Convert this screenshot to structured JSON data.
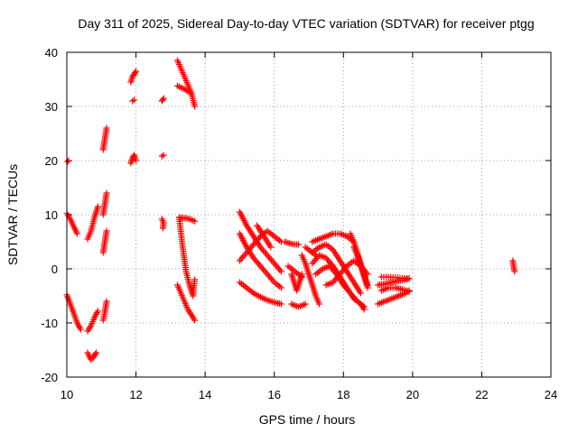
{
  "chart_data": {
    "type": "scatter",
    "title": "Day 311 of 2025, Sidereal Day-to-day VTEC variation (SDTVAR) for receiver ptgg",
    "xlabel": "GPS time / hours",
    "ylabel": "SDTVAR / TECUs",
    "xlim": [
      10,
      24
    ],
    "ylim": [
      -20,
      40
    ],
    "xticks": [
      10,
      12,
      14,
      16,
      18,
      20,
      22,
      24
    ],
    "yticks": [
      -20,
      -10,
      0,
      10,
      20,
      30,
      40
    ],
    "xtick_labels": [
      "10",
      "12",
      "14",
      "16",
      "18",
      "20",
      "22",
      "24"
    ],
    "ytick_labels": [
      "-20",
      "-10",
      "0",
      "10",
      "20",
      "30",
      "40"
    ],
    "grid": true,
    "marker": "plus",
    "color": "#ff0000",
    "segments": [
      {
        "x": [
          10.0,
          10.1,
          10.2,
          10.3
        ],
        "y": [
          10.2,
          9.2,
          7.8,
          6.5
        ]
      },
      {
        "x": [
          10.0,
          10.1,
          10.2,
          10.3,
          10.4
        ],
        "y": [
          -4.8,
          -6.5,
          -8.2,
          -10.0,
          -11.2
        ]
      },
      {
        "x": [
          10.02,
          10.05
        ],
        "y": [
          19.8,
          20.0
        ]
      },
      {
        "x": [
          10.6,
          10.65,
          10.7,
          10.75,
          10.8,
          10.85
        ],
        "y": [
          -15.5,
          -16.2,
          -16.8,
          -16.5,
          -16.0,
          -15.5
        ]
      },
      {
        "x": [
          10.6,
          10.7,
          10.8,
          10.9
        ],
        "y": [
          5.5,
          7.0,
          9.5,
          11.5
        ]
      },
      {
        "x": [
          10.6,
          10.7,
          10.8,
          10.9
        ],
        "y": [
          -11.5,
          -10.5,
          -9.0,
          -7.8
        ]
      },
      {
        "x": [
          11.05,
          11.1,
          11.15
        ],
        "y": [
          -9.5,
          -8.0,
          -6.0
        ]
      },
      {
        "x": [
          11.05,
          11.1,
          11.15
        ],
        "y": [
          3.0,
          5.0,
          7.0
        ]
      },
      {
        "x": [
          11.05,
          11.1,
          11.15
        ],
        "y": [
          10.0,
          12.0,
          14.0
        ]
      },
      {
        "x": [
          11.05,
          11.1,
          11.15
        ],
        "y": [
          22.0,
          24.0,
          26.0
        ]
      },
      {
        "x": [
          11.85,
          11.9,
          11.95,
          12.0
        ],
        "y": [
          34.5,
          35.5,
          36.0,
          36.5
        ]
      },
      {
        "x": [
          11.9,
          11.95
        ],
        "y": [
          31.0,
          31.2
        ]
      },
      {
        "x": [
          11.85,
          11.9,
          11.95,
          12.0
        ],
        "y": [
          19.5,
          20.5,
          21.0,
          20.0
        ]
      },
      {
        "x": [
          12.75,
          12.8
        ],
        "y": [
          31.0,
          31.5
        ]
      },
      {
        "x": [
          12.75,
          12.8
        ],
        "y": [
          20.8,
          21.0
        ]
      },
      {
        "x": [
          12.75,
          12.8,
          12.78
        ],
        "y": [
          9.2,
          8.5,
          7.5
        ]
      },
      {
        "x": [
          13.2,
          13.3,
          13.4,
          13.5,
          13.6,
          13.7
        ],
        "y": [
          38.5,
          37.0,
          35.5,
          34.0,
          32.5,
          30.0
        ]
      },
      {
        "x": [
          13.2,
          13.3,
          13.4,
          13.5,
          13.6
        ],
        "y": [
          33.8,
          33.5,
          33.2,
          32.8,
          32.5
        ]
      },
      {
        "x": [
          13.25,
          13.35,
          13.45,
          13.55,
          13.65,
          13.7
        ],
        "y": [
          9.5,
          4.0,
          -0.5,
          -3.0,
          -5.0,
          -2.0
        ]
      },
      {
        "x": [
          13.25,
          13.4,
          13.55,
          13.7
        ],
        "y": [
          9.5,
          9.4,
          9.2,
          8.8
        ]
      },
      {
        "x": [
          13.2,
          13.3,
          13.4,
          13.5,
          13.6,
          13.7
        ],
        "y": [
          -3.0,
          -4.5,
          -6.0,
          -7.5,
          -8.5,
          -9.5
        ]
      },
      {
        "x": [
          15.0,
          15.2,
          15.4,
          15.6,
          15.8,
          16.0,
          16.2
        ],
        "y": [
          10.5,
          8.0,
          6.0,
          4.0,
          2.5,
          1.0,
          -0.5
        ]
      },
      {
        "x": [
          15.0,
          15.2,
          15.4,
          15.6,
          15.8,
          16.0,
          16.2
        ],
        "y": [
          6.5,
          4.0,
          2.0,
          0.5,
          -1.0,
          -2.5,
          -3.5
        ]
      },
      {
        "x": [
          15.0,
          15.2,
          15.4,
          15.6,
          15.8,
          16.0,
          16.2
        ],
        "y": [
          1.5,
          3.0,
          4.5,
          6.0,
          7.0,
          6.0,
          5.0
        ]
      },
      {
        "x": [
          15.0,
          15.2,
          15.4,
          15.6,
          15.8,
          16.0,
          16.2
        ],
        "y": [
          -2.5,
          -3.5,
          -4.5,
          -5.2,
          -5.8,
          -6.2,
          -6.5
        ]
      },
      {
        "x": [
          15.5,
          15.6,
          15.7,
          15.8,
          15.9
        ],
        "y": [
          8.0,
          7.0,
          6.0,
          5.0,
          4.0
        ]
      },
      {
        "x": [
          16.3,
          16.4,
          16.5,
          16.6,
          16.7
        ],
        "y": [
          5.0,
          4.8,
          4.6,
          4.5,
          4.5
        ]
      },
      {
        "x": [
          16.4,
          16.5,
          16.6,
          16.7,
          16.8
        ],
        "y": [
          0.5,
          0.0,
          -0.5,
          -1.0,
          -1.5
        ]
      },
      {
        "x": [
          16.5,
          16.55,
          16.6,
          16.65,
          16.7,
          16.75,
          16.8
        ],
        "y": [
          -1.0,
          -2.0,
          -3.0,
          -4.0,
          -3.0,
          -2.0,
          -1.0
        ]
      },
      {
        "x": [
          16.5,
          16.6,
          16.7,
          16.8,
          16.9
        ],
        "y": [
          -6.5,
          -6.8,
          -7.0,
          -6.8,
          -6.5
        ]
      },
      {
        "x": [
          16.8,
          16.9,
          17.0,
          17.1,
          17.2,
          17.3
        ],
        "y": [
          2.5,
          1.0,
          -1.0,
          -3.0,
          -5.0,
          -6.5
        ]
      },
      {
        "x": [
          16.9,
          17.0,
          17.1,
          17.2
        ],
        "y": [
          4.0,
          3.5,
          3.0,
          2.5
        ]
      },
      {
        "x": [
          17.1,
          17.3,
          17.5,
          17.7,
          17.9,
          18.1,
          18.3
        ],
        "y": [
          5.0,
          5.5,
          6.0,
          6.5,
          6.5,
          6.0,
          5.0
        ]
      },
      {
        "x": [
          17.1,
          17.3,
          17.5,
          17.7,
          17.9,
          18.1,
          18.3,
          18.5
        ],
        "y": [
          3.0,
          4.0,
          4.5,
          3.5,
          1.5,
          -0.5,
          -2.5,
          -4.5
        ]
      },
      {
        "x": [
          17.1,
          17.3,
          17.5,
          17.7,
          17.9,
          18.1,
          18.3,
          18.5,
          18.6
        ],
        "y": [
          1.0,
          2.5,
          2.0,
          0.5,
          -1.5,
          -3.5,
          -5.5,
          -6.5,
          -7.5
        ]
      },
      {
        "x": [
          17.2,
          17.4,
          17.6,
          17.8,
          18.0,
          18.2,
          18.4,
          18.6
        ],
        "y": [
          -1.0,
          0.0,
          0.5,
          -1.0,
          -3.0,
          -4.5,
          -6.0,
          -7.0
        ]
      },
      {
        "x": [
          17.5,
          17.7,
          17.9,
          18.1,
          18.3,
          18.5,
          18.7
        ],
        "y": [
          -3.0,
          -2.5,
          -1.0,
          0.5,
          1.5,
          0.5,
          -1.0
        ]
      },
      {
        "x": [
          18.2,
          18.3,
          18.4,
          18.5,
          18.6,
          18.7
        ],
        "y": [
          6.5,
          5.0,
          3.0,
          1.0,
          -1.0,
          -3.0
        ]
      },
      {
        "x": [
          18.3,
          18.4,
          18.5,
          18.6,
          18.7
        ],
        "y": [
          4.0,
          2.5,
          0.5,
          -1.5,
          -3.5
        ]
      },
      {
        "x": [
          19.0,
          19.2,
          19.4,
          19.6,
          19.8,
          19.9
        ],
        "y": [
          -6.5,
          -6.0,
          -5.5,
          -5.0,
          -4.5,
          -4.0
        ]
      },
      {
        "x": [
          19.0,
          19.2,
          19.4,
          19.6,
          19.8,
          19.9
        ],
        "y": [
          -3.0,
          -2.8,
          -2.5,
          -2.2,
          -2.0,
          -1.8
        ]
      },
      {
        "x": [
          19.1,
          19.3,
          19.5,
          19.7,
          19.9
        ],
        "y": [
          -1.5,
          -1.5,
          -1.6,
          -1.7,
          -1.8
        ]
      },
      {
        "x": [
          19.1,
          19.3,
          19.5,
          19.7,
          19.9
        ],
        "y": [
          -4.0,
          -3.5,
          -3.5,
          -3.8,
          -4.2
        ]
      },
      {
        "x": [
          22.9,
          22.92,
          22.95
        ],
        "y": [
          1.5,
          0.5,
          -0.5
        ]
      }
    ]
  }
}
